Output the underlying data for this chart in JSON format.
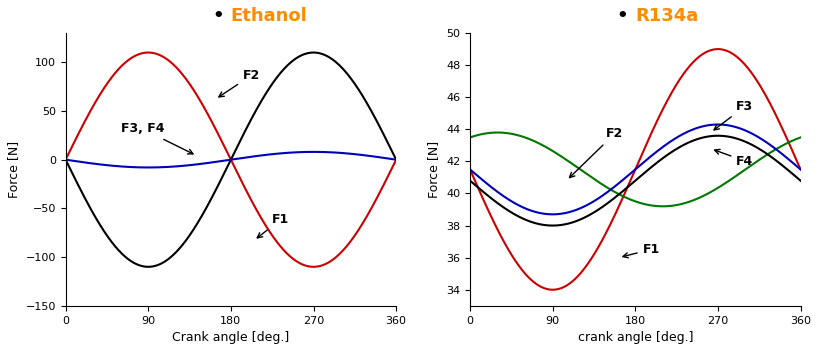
{
  "left_title_text": "Ethanol",
  "right_title_text": "R134a",
  "title_color": "#FF8C00",
  "left_xlabel": "Crank angle [deg.]",
  "left_ylabel": "Force [N]",
  "right_xlabel": "crank angle [deg.]",
  "right_ylabel": "Force [N]",
  "left_xlim": [
    0,
    360
  ],
  "left_ylim": [
    -150,
    130
  ],
  "right_xlim": [
    0,
    360
  ],
  "right_ylim": [
    33,
    50
  ],
  "left_xticks": [
    0,
    90,
    180,
    270,
    360
  ],
  "right_xticks": [
    0,
    90,
    180,
    270,
    360
  ],
  "left_yticks": [
    -150,
    -100,
    -50,
    0,
    50,
    100
  ],
  "right_yticks": [
    34,
    36,
    38,
    40,
    42,
    44,
    46,
    48,
    50
  ],
  "colors": {
    "F1_left": "#CC0000",
    "F2_left": "#000000",
    "F34_left": "#0000BB",
    "F1_right": "#CC0000",
    "F2_right": "#007700",
    "F3_right": "#0000BB",
    "F4_right": "#000000"
  },
  "background": "#FFFFFF"
}
